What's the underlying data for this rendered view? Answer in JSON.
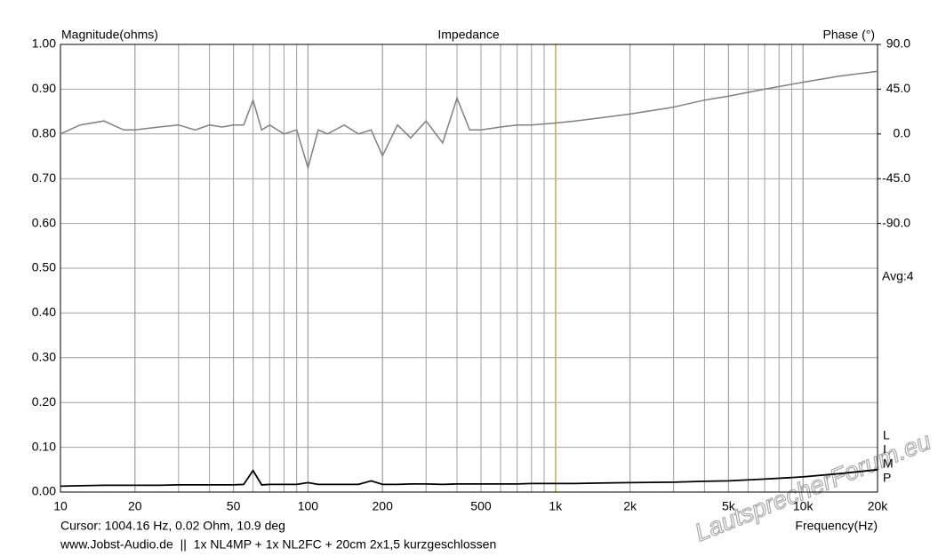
{
  "chart_data": {
    "type": "line",
    "title": "Impedance",
    "ylabel": "Magnitude(ohms)",
    "y2label": "Phase (°)",
    "xlabel": "Frequency(Hz)",
    "avg_label": "Avg:4",
    "side_letters": [
      "L",
      "I",
      "M",
      "P"
    ],
    "cursor": {
      "x": 1004.16,
      "label": "Cursor: 1004.16 Hz, 0.02 Ohm, 10.9 deg",
      "color": "#e0d000"
    },
    "footer": "www.Jobst-Audio.de  ||  1x NL4MP + 1x NL2FC + 20cm 2x1,5 kurzgeschlossen",
    "watermark": "LautsprecherForum.eu",
    "xscale": "log",
    "grid": true,
    "xlim": [
      10,
      20000
    ],
    "xticks": [
      10,
      20,
      50,
      100,
      200,
      500,
      {
        "value": 1000,
        "label": "1k"
      },
      {
        "value": 2000,
        "label": "2k"
      },
      {
        "value": 5000,
        "label": "5k"
      },
      {
        "value": 10000,
        "label": "10k"
      },
      {
        "value": 20000,
        "label": "20k"
      }
    ],
    "ylim": [
      0,
      1
    ],
    "yticks": [
      {
        "value": 0,
        "label": "0.00"
      },
      {
        "value": 0.1,
        "label": "0.10"
      },
      {
        "value": 0.2,
        "label": "0.20"
      },
      {
        "value": 0.3,
        "label": "0.30"
      },
      {
        "value": 0.4,
        "label": "0.40"
      },
      {
        "value": 0.5,
        "label": "0.50"
      },
      {
        "value": 0.6,
        "label": "0.60"
      },
      {
        "value": 0.7,
        "label": "0.70"
      },
      {
        "value": 0.8,
        "label": "0.80"
      },
      {
        "value": 0.9,
        "label": "0.90"
      },
      {
        "value": 1,
        "label": "1.00"
      }
    ],
    "y2lim": [
      -360,
      90
    ],
    "y2ticks": [
      {
        "value": 90,
        "label": "90.0"
      },
      {
        "value": 45,
        "label": "45.0"
      },
      {
        "value": 0,
        "label": "0.0"
      },
      {
        "value": -45,
        "label": "-45.0"
      },
      {
        "value": -90,
        "label": "-90.0"
      }
    ],
    "x": [
      10,
      12,
      15,
      18,
      20,
      25,
      30,
      35,
      40,
      45,
      50,
      55,
      60,
      65,
      70,
      80,
      90,
      100,
      110,
      120,
      140,
      160,
      180,
      200,
      230,
      260,
      300,
      350,
      400,
      450,
      500,
      600,
      700,
      800,
      1000,
      1200,
      1500,
      2000,
      3000,
      4000,
      5000,
      7000,
      10000,
      14000,
      20000
    ],
    "series": [
      {
        "name": "Magnitude",
        "color": "#000000",
        "values": [
          0.013,
          0.014,
          0.015,
          0.015,
          0.015,
          0.015,
          0.016,
          0.016,
          0.016,
          0.016,
          0.016,
          0.017,
          0.048,
          0.016,
          0.017,
          0.017,
          0.017,
          0.021,
          0.017,
          0.017,
          0.017,
          0.017,
          0.025,
          0.017,
          0.017,
          0.018,
          0.018,
          0.017,
          0.018,
          0.018,
          0.018,
          0.018,
          0.018,
          0.019,
          0.019,
          0.019,
          0.02,
          0.021,
          0.022,
          0.024,
          0.025,
          0.029,
          0.034,
          0.041,
          0.05
        ]
      },
      {
        "name": "Phase",
        "color": "#808080",
        "axis": "y2",
        "values": [
          0,
          9,
          13,
          4,
          4,
          7,
          9,
          4,
          9,
          7,
          9,
          9,
          34,
          4,
          9,
          0,
          4,
          -34,
          4,
          0,
          9,
          0,
          4,
          -22,
          9,
          -4,
          13,
          -9,
          36,
          4,
          4,
          7,
          9,
          9,
          11,
          13,
          16,
          20,
          27,
          34,
          38,
          45,
          52,
          58,
          63
        ]
      }
    ]
  }
}
